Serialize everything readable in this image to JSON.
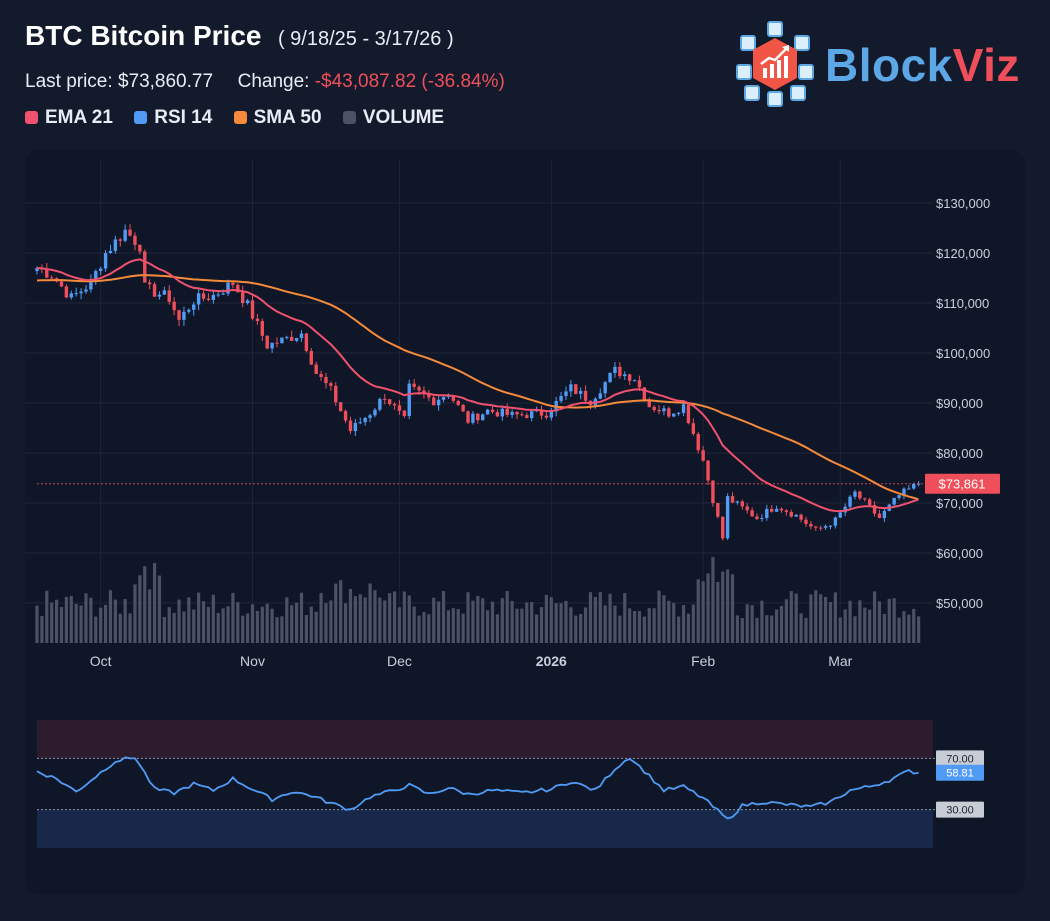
{
  "header": {
    "title": "BTC Bitcoin Price",
    "range": "( 9/18/25 - 3/17/26 )",
    "last_price_label": "Last price:",
    "last_price": "$73,860.77",
    "change_label": "Change:",
    "change_value": "-$43,087.82 (-36.84%)"
  },
  "legend": [
    {
      "label": "EMA 21",
      "color": "#f0526e"
    },
    {
      "label": "RSI 14",
      "color": "#4f9bf5"
    },
    {
      "label": "SMA 50",
      "color": "#f58a3a"
    },
    {
      "label": "VOLUME",
      "color": "#4a5264"
    }
  ],
  "logo": {
    "text_left": "Block",
    "text_right": "Viz"
  },
  "chart_data": {
    "type": "candlestick",
    "price_axis": {
      "ticks": [
        "$130,000",
        "$120,000",
        "$110,000",
        "$100,000",
        "$90,000",
        "$80,000",
        "$70,000",
        "$60,000",
        "$50,000"
      ],
      "tick_values": [
        130000,
        120000,
        110000,
        100000,
        90000,
        80000,
        70000,
        60000,
        50000
      ],
      "ylim": [
        48000,
        133000
      ]
    },
    "x_axis": {
      "ticks": [
        "Oct",
        "Nov",
        "Dec",
        "2026",
        "Feb",
        "Mar"
      ]
    },
    "last_price_label": "$73,861",
    "last_price_value": 73861,
    "colors": {
      "up": "#4f9bf5",
      "down": "#ef4f5a",
      "ema": "#f0526e",
      "sma": "#f58a3a",
      "volume": "#4a5264",
      "rsi": "#4f9bf5"
    },
    "price_anchors": [
      [
        "2025-09-18",
        117000
      ],
      [
        "2025-09-21",
        115600
      ],
      [
        "2025-09-25",
        111000
      ],
      [
        "2025-09-29",
        114000
      ],
      [
        "2025-10-02",
        120000
      ],
      [
        "2025-10-06",
        124500
      ],
      [
        "2025-10-09",
        121500
      ],
      [
        "2025-10-10",
        113000
      ],
      [
        "2025-10-15",
        111000
      ],
      [
        "2025-10-17",
        106500
      ],
      [
        "2025-10-20",
        110500
      ],
      [
        "2025-10-24",
        111500
      ],
      [
        "2025-10-28",
        114000
      ],
      [
        "2025-10-31",
        109500
      ],
      [
        "2025-11-04",
        101500
      ],
      [
        "2025-11-07",
        102500
      ],
      [
        "2025-11-11",
        104000
      ],
      [
        "2025-11-14",
        96000
      ],
      [
        "2025-11-17",
        92500
      ],
      [
        "2025-11-21",
        84500
      ],
      [
        "2025-11-25",
        88000
      ],
      [
        "2025-11-28",
        91500
      ],
      [
        "2025-12-02",
        86500
      ],
      [
        "2025-12-03",
        93000
      ],
      [
        "2025-12-08",
        90500
      ],
      [
        "2025-12-11",
        92000
      ],
      [
        "2025-12-15",
        86500
      ],
      [
        "2025-12-19",
        88500
      ],
      [
        "2025-12-24",
        87500
      ],
      [
        "2025-12-31",
        88000
      ],
      [
        "2026-01-05",
        93000
      ],
      [
        "2026-01-09",
        90500
      ],
      [
        "2026-01-14",
        96500
      ],
      [
        "2026-01-18",
        95000
      ],
      [
        "2026-01-21",
        89500
      ],
      [
        "2026-01-25",
        88000
      ],
      [
        "2026-01-28",
        89500
      ],
      [
        "2026-02-01",
        78500
      ],
      [
        "2026-02-05",
        63000
      ],
      [
        "2026-02-06",
        71000
      ],
      [
        "2026-02-12",
        67000
      ],
      [
        "2026-02-16",
        69500
      ],
      [
        "2026-02-20",
        67500
      ],
      [
        "2026-02-24",
        64500
      ],
      [
        "2026-02-28",
        66500
      ],
      [
        "2026-03-04",
        72000
      ],
      [
        "2026-03-09",
        67000
      ],
      [
        "2026-03-13",
        71500
      ],
      [
        "2026-03-17",
        73861
      ]
    ],
    "rsi": {
      "levels": [
        70,
        30
      ],
      "level_labels": [
        "70.00",
        "30.00"
      ],
      "last_label": "58.81",
      "last_value": 58.81,
      "anchors": [
        [
          "2025-09-18",
          60
        ],
        [
          "2025-09-22",
          54
        ],
        [
          "2025-09-26",
          44
        ],
        [
          "2025-09-30",
          56
        ],
        [
          "2025-10-04",
          68
        ],
        [
          "2025-10-08",
          71
        ],
        [
          "2025-10-12",
          46
        ],
        [
          "2025-10-16",
          43
        ],
        [
          "2025-10-20",
          50
        ],
        [
          "2025-10-24",
          45
        ],
        [
          "2025-10-28",
          54
        ],
        [
          "2025-11-01",
          46
        ],
        [
          "2025-11-05",
          38
        ],
        [
          "2025-11-09",
          44
        ],
        [
          "2025-11-13",
          41
        ],
        [
          "2025-11-17",
          35
        ],
        [
          "2025-11-21",
          30
        ],
        [
          "2025-11-25",
          40
        ],
        [
          "2025-11-29",
          44
        ],
        [
          "2025-12-03",
          49
        ],
        [
          "2025-12-07",
          42
        ],
        [
          "2025-12-11",
          47
        ],
        [
          "2025-12-15",
          42
        ],
        [
          "2025-12-20",
          45
        ],
        [
          "2025-12-26",
          43
        ],
        [
          "2026-01-01",
          46
        ],
        [
          "2026-01-05",
          52
        ],
        [
          "2026-01-10",
          45
        ],
        [
          "2026-01-14",
          62
        ],
        [
          "2026-01-17",
          71
        ],
        [
          "2026-01-20",
          60
        ],
        [
          "2026-01-24",
          45
        ],
        [
          "2026-01-28",
          48
        ],
        [
          "2026-02-01",
          39
        ],
        [
          "2026-02-04",
          29
        ],
        [
          "2026-02-06",
          22
        ],
        [
          "2026-02-09",
          33
        ],
        [
          "2026-02-13",
          36
        ],
        [
          "2026-02-18",
          34
        ],
        [
          "2026-02-23",
          32
        ],
        [
          "2026-02-27",
          36
        ],
        [
          "2026-03-03",
          45
        ],
        [
          "2026-03-07",
          48
        ],
        [
          "2026-03-11",
          53
        ],
        [
          "2026-03-15",
          60
        ],
        [
          "2026-03-17",
          58.81
        ]
      ]
    }
  }
}
